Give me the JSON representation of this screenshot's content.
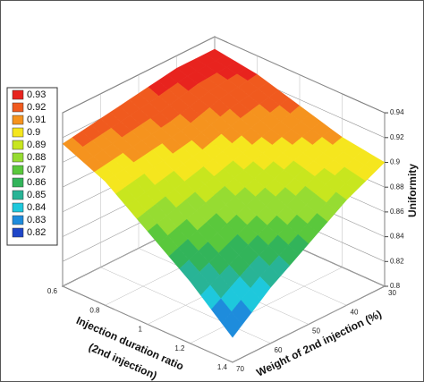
{
  "chart_data": {
    "type": "surface",
    "xlabel": [
      "Injection duration ratio",
      "(2nd injection)"
    ],
    "ylabel": "Weight of 2nd injection (%)",
    "zlabel": "Uniformity",
    "x": [
      0.6,
      0.8,
      1,
      1.2,
      1.4
    ],
    "y": [
      30,
      40,
      50,
      60,
      70
    ],
    "z": [
      [
        0.93,
        0.93,
        0.925,
        0.92,
        0.915
      ],
      [
        0.925,
        0.92,
        0.91,
        0.905,
        0.9
      ],
      [
        0.915,
        0.905,
        0.895,
        0.885,
        0.875
      ],
      [
        0.905,
        0.895,
        0.88,
        0.865,
        0.85
      ],
      [
        0.9,
        0.885,
        0.865,
        0.845,
        0.82
      ]
    ],
    "xlim": [
      0.6,
      1.4
    ],
    "xticks": [
      0.6,
      0.8,
      1,
      1.2,
      1.4
    ],
    "ylim": [
      30,
      70
    ],
    "yticks": [
      30,
      40,
      50,
      60,
      70
    ],
    "zlim": [
      0.8,
      0.94
    ],
    "zticks": [
      0.8,
      0.82,
      0.84,
      0.86,
      0.88,
      0.9,
      0.92,
      0.94
    ],
    "legend": {
      "levels": [
        0.93,
        0.92,
        0.91,
        0.9,
        0.89,
        0.88,
        0.87,
        0.86,
        0.85,
        0.84,
        0.83,
        0.82
      ],
      "colors": [
        "#e8231e",
        "#f05a1e",
        "#f5931e",
        "#f5e61e",
        "#c8e61e",
        "#96dc32",
        "#5ac83c",
        "#32b45a",
        "#28b496",
        "#1ec8dc",
        "#1e8cdc",
        "#1e46c8"
      ]
    },
    "legend_position": "left",
    "grid": true
  }
}
